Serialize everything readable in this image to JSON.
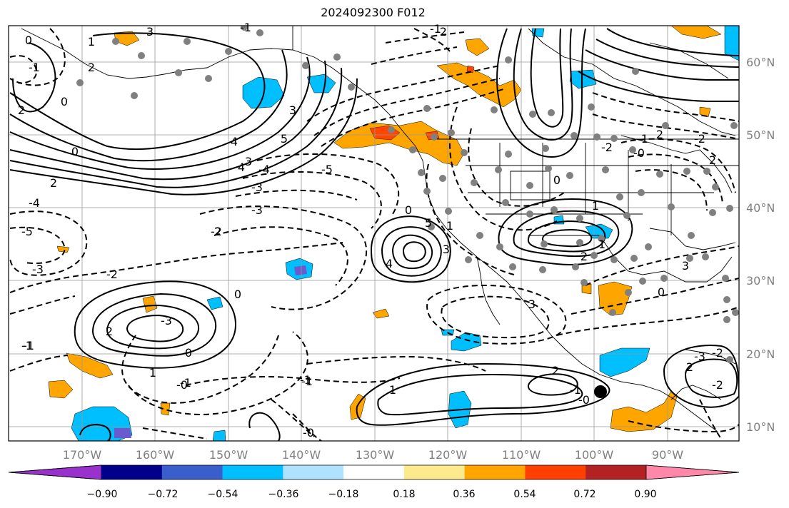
{
  "title": "2024092300 F012",
  "map": {
    "lat_labels": [
      "60°N",
      "50°N",
      "40°N",
      "30°N",
      "20°N",
      "10°N"
    ],
    "lon_labels": [
      "170°W",
      "160°W",
      "150°W",
      "140°W",
      "130°W",
      "120°W",
      "110°W",
      "100°W",
      "90°W"
    ],
    "contour_labels": [
      "0",
      "-2",
      "3",
      "1",
      "2",
      "-1",
      "0",
      "2",
      "4",
      "3",
      "5",
      "-1",
      "0",
      "2",
      "4",
      "3",
      "-3",
      "2",
      "0",
      "-4",
      "-5",
      "-3",
      "-2",
      "-1",
      "-0",
      "-1",
      "4",
      "1",
      "5",
      "0",
      "3",
      "0",
      "-5",
      "-4",
      "-3",
      "-2",
      "-1",
      "-3",
      "2",
      "1",
      "0",
      "-1",
      "-0",
      "-1",
      "1",
      "3",
      "2",
      "-1",
      "-0",
      "1",
      "1",
      "2",
      "3",
      "0",
      "2",
      "-2",
      "-3",
      "-2",
      "-1",
      "-2",
      "-0",
      "2",
      "-1",
      "2",
      "-2"
    ],
    "marker": "station-dot",
    "colors": {
      "positive_shading": "#ffa500",
      "strong_positive": "#ff4500",
      "negative_shading": "#00bfff",
      "strong_negative": "#6a5acd",
      "contour": "#000000",
      "station_dots": "#808080"
    }
  },
  "colorbar": {
    "ticks": [
      "−0.90",
      "−0.72",
      "−0.54",
      "−0.36",
      "−0.18",
      "0.18",
      "0.36",
      "0.54",
      "0.72",
      "0.90"
    ],
    "colors": [
      "#9932cc",
      "#00008b",
      "#3a5fcd",
      "#00bfff",
      "#afe2ff",
      "#ffffff",
      "#fdea8c",
      "#ffa500",
      "#ff4000",
      "#b22222",
      "#ff88aa"
    ]
  }
}
